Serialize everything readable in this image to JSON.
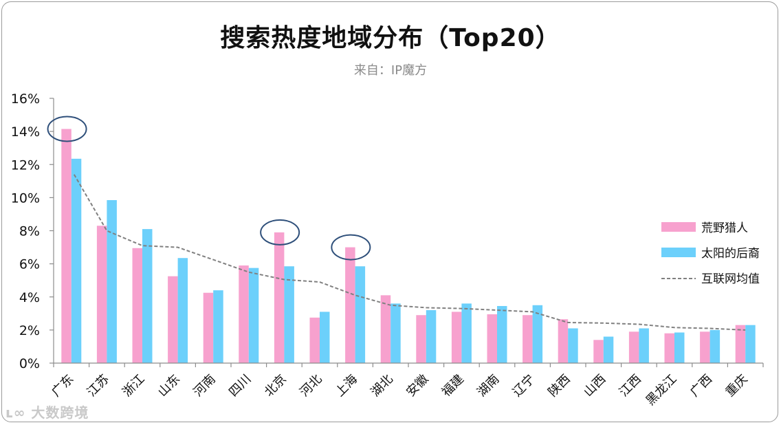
{
  "chart_data": {
    "type": "bar",
    "title": "搜索热度地域分布（Top20）",
    "subtitle": "来自：IP魔方",
    "categories": [
      "广东",
      "江苏",
      "浙江",
      "山东",
      "河南",
      "四川",
      "北京",
      "河北",
      "上海",
      "湖北",
      "安徽",
      "福建",
      "湖南",
      "辽宁",
      "陕西",
      "山西",
      "江西",
      "黑龙江",
      "广西",
      "重庆"
    ],
    "series": [
      {
        "name": "荒野猎人",
        "type": "bar",
        "color": "#f7a1ce",
        "values": [
          14.15,
          8.3,
          6.95,
          5.25,
          4.25,
          5.9,
          7.9,
          2.75,
          7.0,
          4.1,
          2.9,
          3.1,
          2.95,
          2.9,
          2.65,
          1.4,
          1.9,
          1.8,
          1.9,
          2.3
        ]
      },
      {
        "name": "太阳的后裔",
        "type": "bar",
        "color": "#6cd0fb",
        "values": [
          12.35,
          9.85,
          8.1,
          6.35,
          4.4,
          5.75,
          5.85,
          3.1,
          5.85,
          3.6,
          3.2,
          3.6,
          3.45,
          3.5,
          2.1,
          1.6,
          2.1,
          1.85,
          2.0,
          2.3
        ]
      },
      {
        "name": "互联网均值",
        "type": "line",
        "color": "#808080",
        "values": [
          11.4,
          8.0,
          7.1,
          7.0,
          6.25,
          5.5,
          5.05,
          4.9,
          4.1,
          3.5,
          3.35,
          3.3,
          3.2,
          3.1,
          2.45,
          2.42,
          2.35,
          2.15,
          2.1,
          2.0
        ]
      }
    ],
    "ylim": [
      0,
      16
    ],
    "yticks": [
      0,
      2,
      4,
      6,
      8,
      10,
      12,
      14,
      16
    ],
    "ytick_labels": [
      "0%",
      "2%",
      "4%",
      "6%",
      "8%",
      "10%",
      "12%",
      "14%",
      "16%"
    ],
    "highlighted_categories": [
      "广东",
      "北京",
      "上海"
    ],
    "legend_position": "right"
  },
  "watermark": "大数跨境"
}
